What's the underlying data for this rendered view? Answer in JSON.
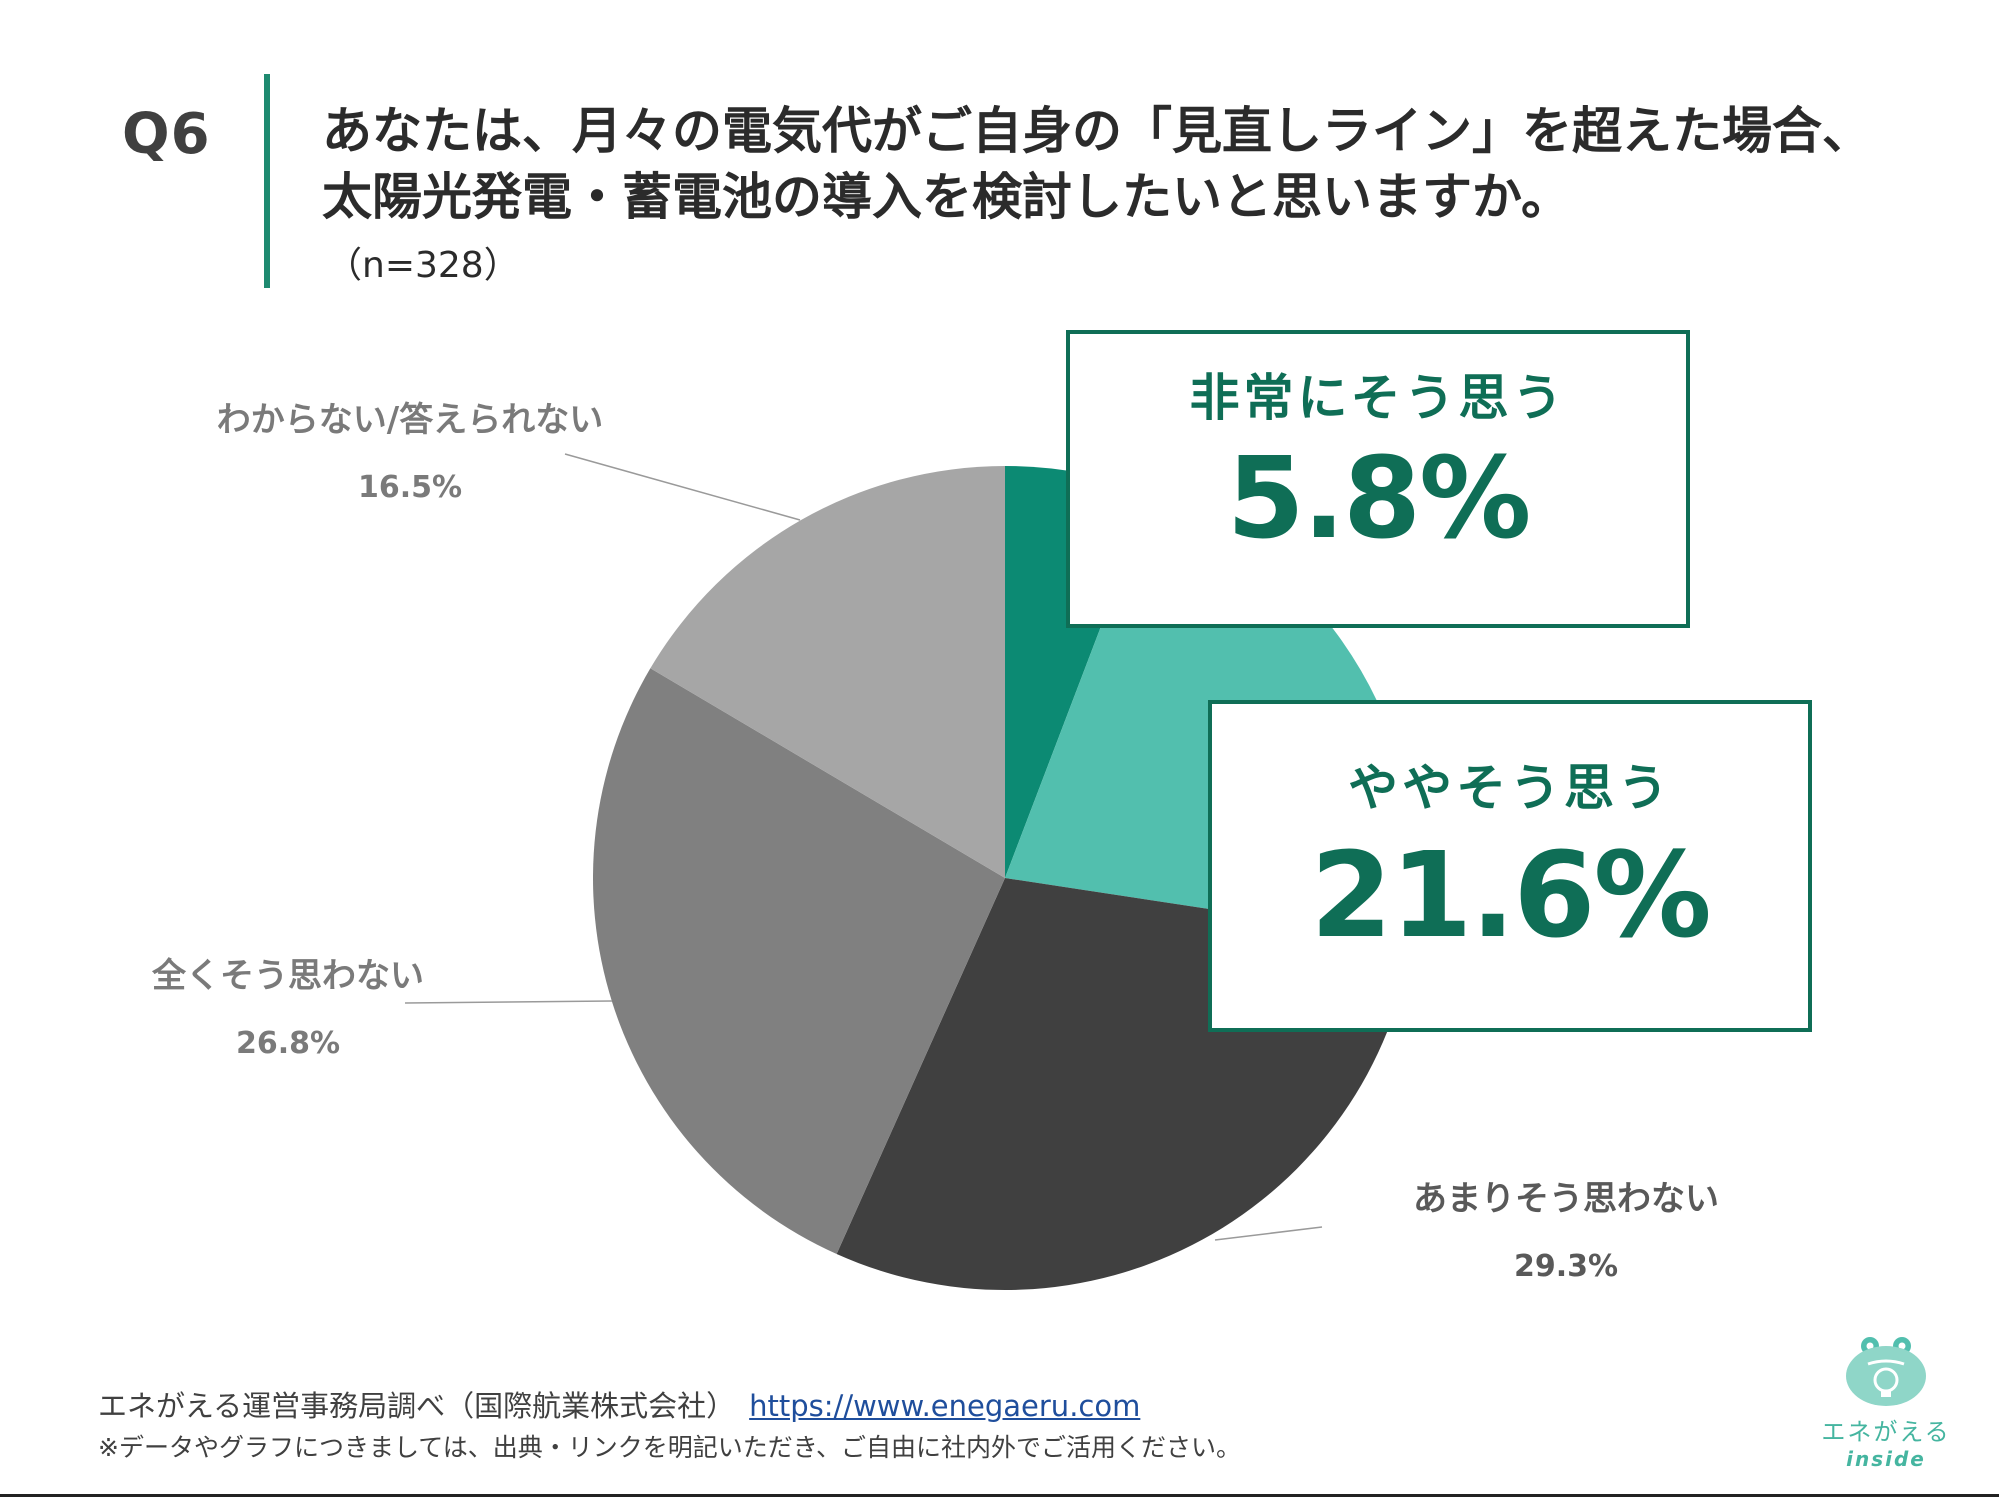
{
  "question": {
    "number": "Q6",
    "title_line1": "あなたは、月々の電気代がご自身の「見直しライン」を超えた場合、",
    "title_line2": "太陽光発電・蓄電池の導入を検討したいと思いますか。",
    "sample": "（n=328）"
  },
  "colors": {
    "accent": "#1e8a70",
    "callout_border": "#0f6e56",
    "slices": [
      "#0c8a73",
      "#52bfae",
      "#404040",
      "#808080",
      "#a6a6a6"
    ]
  },
  "chart_data": {
    "type": "pie",
    "start_angle_deg": 0,
    "direction": "clockwise",
    "categories": [
      "非常にそう思う",
      "ややそう思う",
      "あまりそう思わない",
      "全くそう思わない",
      "わからない/答えられない"
    ],
    "values": [
      5.8,
      21.6,
      29.3,
      26.8,
      16.5
    ],
    "value_labels": [
      "5.8%",
      "21.6%",
      "29.3%",
      "26.8%",
      "16.5%"
    ],
    "unit": "%"
  },
  "callouts": [
    {
      "name": "非常にそう思う",
      "value": "5.8%"
    },
    {
      "name": "ややそう思う",
      "value": "21.6%"
    }
  ],
  "footer": {
    "source": "エネがえる運営事務局調べ（国際航業株式会社）",
    "url": "https://www.enegaeru.com",
    "note": "※データやグラフにつきましては、出典・リンクを明記いただき、ご自由に社内外でご活用ください。"
  },
  "logo": {
    "icon": "frog-lightbulb-icon",
    "text": "エネがえる",
    "sub": "inside"
  }
}
